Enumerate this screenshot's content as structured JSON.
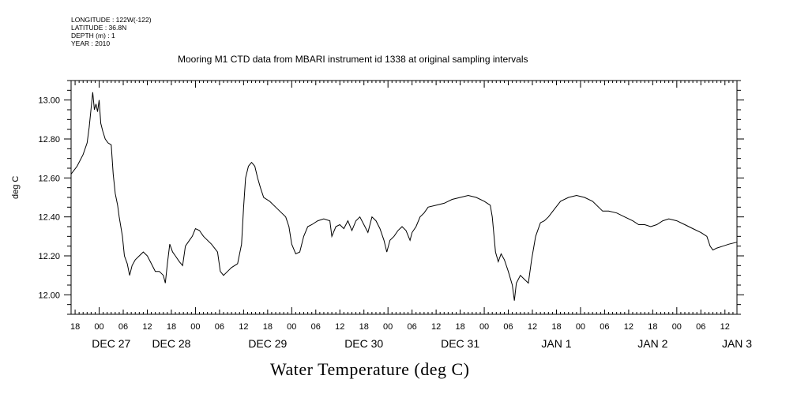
{
  "meta": {
    "longitude": "LONGITUDE : 122W(-122)",
    "latitude": "LATITUDE : 36.8N",
    "depth": "DEPTH (m) : 1",
    "year": "YEAR : 2010"
  },
  "chart_data": {
    "type": "line",
    "title": "Mooring M1 CTD data from MBARI instrument id 1338 at original sampling intervals",
    "xlabel": "Water Temperature (deg C)",
    "ylabel": "deg C",
    "xlim_hours_from_dec27_00": [
      -7,
      159
    ],
    "ylim": [
      11.9,
      13.1
    ],
    "y_ticks": [
      "12.00",
      "12.20",
      "12.40",
      "12.60",
      "12.80",
      "13.00"
    ],
    "x_tick_labels": [
      {
        "h": -6,
        "label": "18"
      },
      {
        "h": 0,
        "label": "00"
      },
      {
        "h": 6,
        "label": "06"
      },
      {
        "h": 12,
        "label": "12"
      },
      {
        "h": 18,
        "label": "18"
      },
      {
        "h": 24,
        "label": "00"
      },
      {
        "h": 30,
        "label": "06"
      },
      {
        "h": 36,
        "label": "12"
      },
      {
        "h": 42,
        "label": "18"
      },
      {
        "h": 48,
        "label": "00"
      },
      {
        "h": 54,
        "label": "06"
      },
      {
        "h": 60,
        "label": "12"
      },
      {
        "h": 66,
        "label": "18"
      },
      {
        "h": 72,
        "label": "00"
      },
      {
        "h": 78,
        "label": "06"
      },
      {
        "h": 84,
        "label": "12"
      },
      {
        "h": 90,
        "label": "18"
      },
      {
        "h": 96,
        "label": "00"
      },
      {
        "h": 102,
        "label": "06"
      },
      {
        "h": 108,
        "label": "12"
      },
      {
        "h": 114,
        "label": "18"
      },
      {
        "h": 120,
        "label": "00"
      },
      {
        "h": 126,
        "label": "06"
      },
      {
        "h": 132,
        "label": "12"
      },
      {
        "h": 138,
        "label": "18"
      },
      {
        "h": 144,
        "label": "00"
      },
      {
        "h": 150,
        "label": "06"
      },
      {
        "h": 156,
        "label": "12"
      }
    ],
    "day_labels": [
      {
        "h": 3,
        "label": "DEC 27"
      },
      {
        "h": 18,
        "label": "DEC 28"
      },
      {
        "h": 42,
        "label": "DEC 29"
      },
      {
        "h": 66,
        "label": "DEC 30"
      },
      {
        "h": 90,
        "label": "DEC 31"
      },
      {
        "h": 114,
        "label": "JAN  1"
      },
      {
        "h": 138,
        "label": "JAN  2"
      },
      {
        "h": 159,
        "label": "JAN  3"
      }
    ],
    "series": [
      {
        "points": [
          [
            -7.0,
            12.62
          ],
          [
            -5.5,
            12.66
          ],
          [
            -4.0,
            12.72
          ],
          [
            -3.0,
            12.78
          ],
          [
            -2.5,
            12.86
          ],
          [
            -2.0,
            12.96
          ],
          [
            -1.6,
            13.04
          ],
          [
            -1.2,
            12.95
          ],
          [
            -0.8,
            12.98
          ],
          [
            -0.4,
            12.94
          ],
          [
            0.0,
            13.0
          ],
          [
            0.4,
            12.88
          ],
          [
            0.9,
            12.84
          ],
          [
            1.5,
            12.8
          ],
          [
            2.2,
            12.78
          ],
          [
            3.0,
            12.77
          ],
          [
            3.5,
            12.62
          ],
          [
            4.0,
            12.52
          ],
          [
            4.6,
            12.46
          ],
          [
            5.0,
            12.4
          ],
          [
            5.8,
            12.3
          ],
          [
            6.3,
            12.2
          ],
          [
            7.0,
            12.16
          ],
          [
            7.6,
            12.1
          ],
          [
            8.2,
            12.15
          ],
          [
            9.0,
            12.18
          ],
          [
            10.0,
            12.2
          ],
          [
            11.0,
            12.22
          ],
          [
            12.0,
            12.2
          ],
          [
            13.0,
            12.16
          ],
          [
            14.0,
            12.12
          ],
          [
            15.0,
            12.12
          ],
          [
            16.0,
            12.1
          ],
          [
            16.5,
            12.06
          ],
          [
            17.0,
            12.16
          ],
          [
            17.6,
            12.26
          ],
          [
            18.3,
            12.22
          ],
          [
            19.0,
            12.2
          ],
          [
            20.0,
            12.17
          ],
          [
            20.8,
            12.15
          ],
          [
            21.5,
            12.25
          ],
          [
            22.5,
            12.28
          ],
          [
            23.2,
            12.3
          ],
          [
            24.0,
            12.34
          ],
          [
            25.0,
            12.33
          ],
          [
            26.0,
            12.3
          ],
          [
            27.0,
            12.28
          ],
          [
            28.0,
            12.26
          ],
          [
            29.5,
            12.22
          ],
          [
            30.2,
            12.12
          ],
          [
            31.0,
            12.1
          ],
          [
            32.0,
            12.12
          ],
          [
            33.0,
            12.14
          ],
          [
            34.5,
            12.16
          ],
          [
            35.5,
            12.26
          ],
          [
            36.0,
            12.45
          ],
          [
            36.5,
            12.6
          ],
          [
            37.2,
            12.66
          ],
          [
            38.0,
            12.68
          ],
          [
            38.8,
            12.66
          ],
          [
            39.5,
            12.6
          ],
          [
            40.2,
            12.55
          ],
          [
            41.0,
            12.5
          ],
          [
            42.5,
            12.48
          ],
          [
            44.0,
            12.45
          ],
          [
            45.5,
            12.42
          ],
          [
            46.5,
            12.4
          ],
          [
            47.3,
            12.35
          ],
          [
            48.0,
            12.26
          ],
          [
            49.0,
            12.21
          ],
          [
            50.0,
            12.22
          ],
          [
            51.0,
            12.3
          ],
          [
            52.0,
            12.35
          ],
          [
            53.0,
            12.36
          ],
          [
            54.5,
            12.38
          ],
          [
            56.0,
            12.39
          ],
          [
            57.5,
            12.38
          ],
          [
            58.0,
            12.3
          ],
          [
            59.0,
            12.35
          ],
          [
            60.0,
            12.36
          ],
          [
            61.0,
            12.34
          ],
          [
            62.0,
            12.38
          ],
          [
            63.0,
            12.33
          ],
          [
            64.0,
            12.38
          ],
          [
            65.0,
            12.4
          ],
          [
            66.0,
            12.36
          ],
          [
            67.0,
            12.32
          ],
          [
            68.0,
            12.4
          ],
          [
            69.0,
            12.38
          ],
          [
            70.0,
            12.34
          ],
          [
            71.0,
            12.28
          ],
          [
            71.7,
            12.22
          ],
          [
            72.5,
            12.28
          ],
          [
            73.5,
            12.3
          ],
          [
            74.5,
            12.33
          ],
          [
            75.5,
            12.35
          ],
          [
            76.5,
            12.33
          ],
          [
            77.5,
            12.28
          ],
          [
            78.0,
            12.32
          ],
          [
            79.0,
            12.35
          ],
          [
            80.0,
            12.4
          ],
          [
            81.0,
            12.42
          ],
          [
            82.0,
            12.45
          ],
          [
            84.0,
            12.46
          ],
          [
            86.0,
            12.47
          ],
          [
            88.0,
            12.49
          ],
          [
            90.0,
            12.5
          ],
          [
            92.0,
            12.51
          ],
          [
            94.0,
            12.5
          ],
          [
            96.0,
            12.48
          ],
          [
            97.5,
            12.46
          ],
          [
            98.0,
            12.4
          ],
          [
            98.8,
            12.22
          ],
          [
            99.5,
            12.17
          ],
          [
            100.2,
            12.21
          ],
          [
            101.0,
            12.18
          ],
          [
            102.0,
            12.12
          ],
          [
            103.0,
            12.05
          ],
          [
            103.5,
            11.97
          ],
          [
            104.0,
            12.06
          ],
          [
            105.0,
            12.1
          ],
          [
            106.0,
            12.08
          ],
          [
            107.0,
            12.06
          ],
          [
            107.8,
            12.18
          ],
          [
            108.8,
            12.3
          ],
          [
            110.0,
            12.37
          ],
          [
            111.0,
            12.38
          ],
          [
            112.0,
            12.4
          ],
          [
            113.5,
            12.44
          ],
          [
            115.0,
            12.48
          ],
          [
            117.0,
            12.5
          ],
          [
            119.0,
            12.51
          ],
          [
            121.0,
            12.5
          ],
          [
            123.0,
            12.48
          ],
          [
            124.5,
            12.45
          ],
          [
            125.5,
            12.43
          ],
          [
            127.0,
            12.43
          ],
          [
            129.0,
            12.42
          ],
          [
            131.0,
            12.4
          ],
          [
            133.0,
            12.38
          ],
          [
            134.5,
            12.36
          ],
          [
            136.0,
            12.36
          ],
          [
            137.5,
            12.35
          ],
          [
            139.0,
            12.36
          ],
          [
            140.5,
            12.38
          ],
          [
            142.0,
            12.39
          ],
          [
            144.0,
            12.38
          ],
          [
            146.0,
            12.36
          ],
          [
            148.0,
            12.34
          ],
          [
            150.0,
            12.32
          ],
          [
            151.5,
            12.3
          ],
          [
            152.3,
            12.25
          ],
          [
            153.0,
            12.23
          ],
          [
            154.0,
            12.24
          ],
          [
            155.5,
            12.25
          ],
          [
            157.0,
            12.26
          ],
          [
            159.0,
            12.27
          ]
        ]
      }
    ]
  }
}
